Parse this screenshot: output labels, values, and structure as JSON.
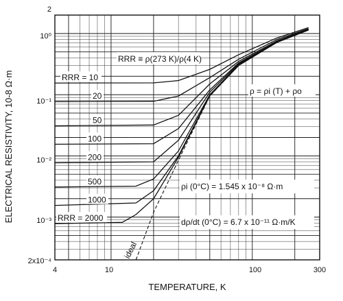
{
  "chart_data": {
    "type": "line",
    "xlabel": "TEMPERATURE, K",
    "ylabel": "ELECTRICAL RESISTIVITY, 10-8 Ω·m",
    "x_scale": "log",
    "y_scale": "log",
    "xlim": [
      4,
      300
    ],
    "ylim": [
      0.0002,
      2
    ],
    "x_ticks": [
      "4",
      "10",
      "100",
      "300"
    ],
    "y_ticks": [
      "2",
      "10⁰",
      "10⁻¹",
      "10⁻²",
      "10⁻³",
      "2x10⁻⁴"
    ],
    "legend_note": "RRR ≡ ρ(273 K)/ρ(4 K)",
    "formula": "ρ = ρi (T) + ρo",
    "annotation_rho": "ρi (0°C) = 1.545 x 10⁻⁸ Ω·m",
    "annotation_drho": "dρ/dt (0°C) = 6.7 x 10⁻¹¹ Ω·m/K",
    "ideal_label": "ideal",
    "series": [
      {
        "name": "RRR = 10",
        "label": "RRR = 10",
        "values": [
          [
            4,
            0.155
          ],
          [
            20,
            0.156
          ],
          [
            30,
            0.17
          ],
          [
            50,
            0.26
          ],
          [
            80,
            0.45
          ],
          [
            150,
            0.85
          ],
          [
            250,
            1.25
          ]
        ]
      },
      {
        "name": "20",
        "label": "20",
        "values": [
          [
            4,
            0.077
          ],
          [
            20,
            0.078
          ],
          [
            30,
            0.095
          ],
          [
            50,
            0.19
          ],
          [
            80,
            0.38
          ],
          [
            150,
            0.8
          ],
          [
            250,
            1.2
          ]
        ]
      },
      {
        "name": "50",
        "label": "50",
        "values": [
          [
            4,
            0.031
          ],
          [
            20,
            0.032
          ],
          [
            30,
            0.046
          ],
          [
            50,
            0.15
          ],
          [
            80,
            0.35
          ],
          [
            150,
            0.76
          ],
          [
            250,
            1.18
          ]
        ]
      },
      {
        "name": "100",
        "label": "100",
        "values": [
          [
            4,
            0.0155
          ],
          [
            20,
            0.0158
          ],
          [
            30,
            0.028
          ],
          [
            50,
            0.12
          ],
          [
            80,
            0.33
          ],
          [
            150,
            0.74
          ],
          [
            250,
            1.16
          ]
        ]
      },
      {
        "name": "200",
        "label": "200",
        "values": [
          [
            4,
            0.0077
          ],
          [
            20,
            0.008
          ],
          [
            30,
            0.018
          ],
          [
            50,
            0.11
          ],
          [
            80,
            0.32
          ],
          [
            150,
            0.73
          ],
          [
            250,
            1.15
          ]
        ]
      },
      {
        "name": "500",
        "label": "500",
        "values": [
          [
            4,
            0.0031
          ],
          [
            15,
            0.0032
          ],
          [
            20,
            0.0042
          ],
          [
            30,
            0.012
          ],
          [
            50,
            0.1
          ],
          [
            80,
            0.31
          ],
          [
            150,
            0.72
          ],
          [
            250,
            1.14
          ]
        ]
      },
      {
        "name": "1000",
        "label": "1000",
        "values": [
          [
            4,
            0.00155
          ],
          [
            15,
            0.0017
          ],
          [
            20,
            0.0027
          ],
          [
            30,
            0.01
          ],
          [
            50,
            0.097
          ],
          [
            80,
            0.3
          ],
          [
            150,
            0.72
          ],
          [
            250,
            1.14
          ]
        ]
      },
      {
        "name": "RRR = 2000",
        "label": "RRR = 2000",
        "values": [
          [
            4,
            0.00078
          ],
          [
            12,
            0.00082
          ],
          [
            15,
            0.0011
          ],
          [
            20,
            0.002
          ],
          [
            30,
            0.0095
          ],
          [
            50,
            0.096
          ],
          [
            80,
            0.3
          ],
          [
            150,
            0.72
          ],
          [
            250,
            1.14
          ]
        ]
      }
    ],
    "ideal": [
      [
        15,
        0.0002
      ],
      [
        20,
        0.0012
      ],
      [
        30,
        0.0085
      ],
      [
        50,
        0.095
      ],
      [
        80,
        0.3
      ],
      [
        150,
        0.72
      ],
      [
        250,
        1.14
      ]
    ],
    "grid": true
  }
}
